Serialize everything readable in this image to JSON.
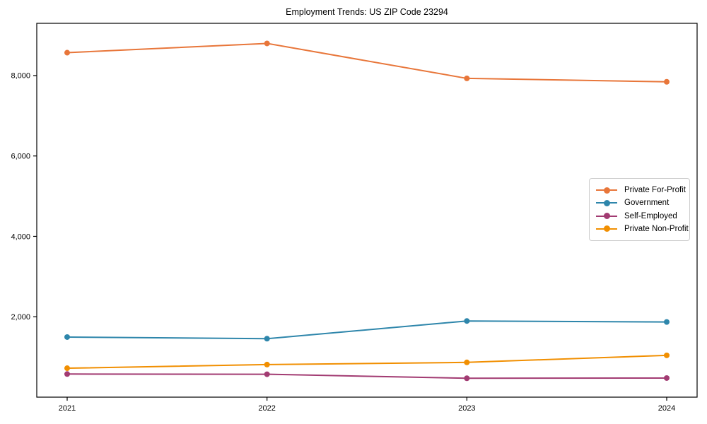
{
  "chart_data": {
    "type": "line",
    "title": "Employment Trends: US ZIP Code 23294",
    "x": [
      "2021",
      "2022",
      "2023",
      "2024"
    ],
    "series": [
      {
        "name": "Private For-Profit",
        "color": "#E8763A",
        "values": [
          8570,
          8800,
          7930,
          7845
        ]
      },
      {
        "name": "Government",
        "color": "#2E86AB",
        "values": [
          1495,
          1455,
          1895,
          1870
        ]
      },
      {
        "name": "Self-Employed",
        "color": "#A23B72",
        "values": [
          575,
          570,
          470,
          475
        ]
      },
      {
        "name": "Private Non-Profit",
        "color": "#F18F01",
        "values": [
          720,
          810,
          865,
          1040
        ]
      }
    ],
    "yticks": [
      {
        "value": 2000,
        "label": "2,000"
      },
      {
        "value": 4000,
        "label": "4,000"
      },
      {
        "value": 6000,
        "label": "6,000"
      },
      {
        "value": 8000,
        "label": "8,000"
      }
    ],
    "ylim": [
      0,
      9300
    ],
    "xlabel": "",
    "ylabel": "",
    "legend_position": "center right",
    "grid": false,
    "marker": "circle",
    "line_width": 2,
    "marker_radius": 4,
    "spine_color": "#000000",
    "text_color": "#000000"
  }
}
